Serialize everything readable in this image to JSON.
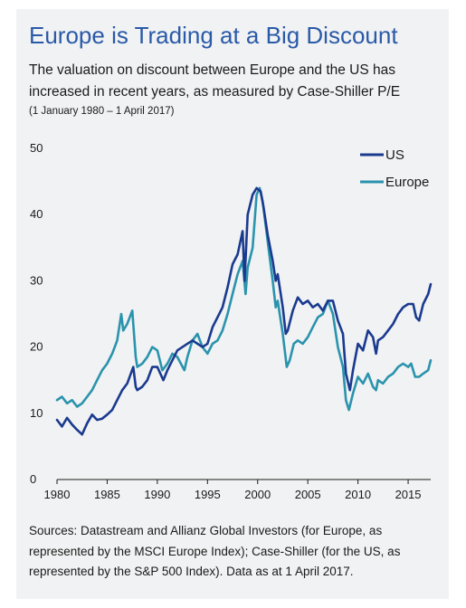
{
  "header": {
    "title": "Europe is Trading at a Big Discount",
    "subtitle": "The valuation on discount between Europe and the US has increased in recent years, as measured by Case-Shiller P/E",
    "date_range": "(1 January 1980 – 1 April 2017)"
  },
  "footer": {
    "sources": "Sources: Datastream and Allianz Global Investors (for Europe, as represented by the MSCI Europe Index); Case-Shiller (for the US, as represented by the S&P 500 Index). Data as at 1 April 2017."
  },
  "colors": {
    "us": "#1a3a8f",
    "europe": "#2a93ad",
    "title": "#2a5aa8",
    "card": "#f1f2f3"
  },
  "chart_data": {
    "type": "line",
    "xlim": [
      1980,
      2017.25
    ],
    "ylim": [
      0,
      50
    ],
    "xticks": [
      1980,
      1985,
      1990,
      1995,
      2000,
      2005,
      2010,
      2015
    ],
    "yticks": [
      0,
      10,
      20,
      30,
      40,
      50
    ],
    "legend_position": "top-right",
    "series": [
      {
        "name": "US",
        "color": "#1a3a8f",
        "points": [
          [
            1980.0,
            9.0
          ],
          [
            1980.5,
            8.0
          ],
          [
            1981.0,
            9.3
          ],
          [
            1981.5,
            8.3
          ],
          [
            1982.0,
            7.5
          ],
          [
            1982.5,
            6.8
          ],
          [
            1983.0,
            8.5
          ],
          [
            1983.5,
            9.8
          ],
          [
            1984.0,
            9.0
          ],
          [
            1984.5,
            9.2
          ],
          [
            1985.0,
            9.8
          ],
          [
            1985.5,
            10.5
          ],
          [
            1986.0,
            12.0
          ],
          [
            1986.5,
            13.5
          ],
          [
            1987.0,
            14.5
          ],
          [
            1987.6,
            17.0
          ],
          [
            1987.85,
            14.0
          ],
          [
            1988.0,
            13.5
          ],
          [
            1988.5,
            14.0
          ],
          [
            1989.0,
            15.0
          ],
          [
            1989.5,
            17.0
          ],
          [
            1990.0,
            17.0
          ],
          [
            1990.6,
            15.0
          ],
          [
            1991.0,
            16.5
          ],
          [
            1991.5,
            18.0
          ],
          [
            1992.0,
            19.5
          ],
          [
            1992.5,
            20.0
          ],
          [
            1993.0,
            20.5
          ],
          [
            1993.5,
            21.0
          ],
          [
            1994.0,
            20.5
          ],
          [
            1994.5,
            20.0
          ],
          [
            1995.0,
            20.5
          ],
          [
            1995.5,
            23.0
          ],
          [
            1996.0,
            24.5
          ],
          [
            1996.5,
            26.0
          ],
          [
            1997.0,
            29.0
          ],
          [
            1997.5,
            32.5
          ],
          [
            1998.0,
            34.0
          ],
          [
            1998.5,
            37.5
          ],
          [
            1998.7,
            30.0
          ],
          [
            1999.0,
            40.0
          ],
          [
            1999.5,
            43.0
          ],
          [
            1999.9,
            44.0
          ],
          [
            2000.3,
            43.5
          ],
          [
            2000.6,
            41.0
          ],
          [
            2001.0,
            37.0
          ],
          [
            2001.5,
            33.0
          ],
          [
            2001.8,
            30.0
          ],
          [
            2002.0,
            31.0
          ],
          [
            2002.5,
            26.0
          ],
          [
            2002.8,
            22.0
          ],
          [
            2003.0,
            22.5
          ],
          [
            2003.5,
            25.5
          ],
          [
            2004.0,
            27.5
          ],
          [
            2004.5,
            26.5
          ],
          [
            2005.0,
            27.0
          ],
          [
            2005.5,
            26.0
          ],
          [
            2006.0,
            26.5
          ],
          [
            2006.5,
            25.5
          ],
          [
            2007.0,
            27.0
          ],
          [
            2007.5,
            27.0
          ],
          [
            2008.0,
            24.0
          ],
          [
            2008.5,
            22.0
          ],
          [
            2008.8,
            16.0
          ],
          [
            2009.2,
            13.5
          ],
          [
            2009.5,
            16.5
          ],
          [
            2010.0,
            20.5
          ],
          [
            2010.5,
            19.5
          ],
          [
            2011.0,
            22.5
          ],
          [
            2011.5,
            21.5
          ],
          [
            2011.8,
            19.0
          ],
          [
            2012.0,
            21.0
          ],
          [
            2012.5,
            21.5
          ],
          [
            2013.0,
            22.5
          ],
          [
            2013.5,
            23.5
          ],
          [
            2014.0,
            25.0
          ],
          [
            2014.5,
            26.0
          ],
          [
            2015.0,
            26.5
          ],
          [
            2015.5,
            26.5
          ],
          [
            2015.8,
            24.5
          ],
          [
            2016.1,
            24.0
          ],
          [
            2016.5,
            26.5
          ],
          [
            2017.0,
            28.0
          ],
          [
            2017.25,
            29.5
          ]
        ]
      },
      {
        "name": "Europe",
        "color": "#2a93ad",
        "points": [
          [
            1980.0,
            12.0
          ],
          [
            1980.5,
            12.5
          ],
          [
            1981.0,
            11.5
          ],
          [
            1981.5,
            12.0
          ],
          [
            1982.0,
            11.0
          ],
          [
            1982.5,
            11.5
          ],
          [
            1983.0,
            12.5
          ],
          [
            1983.5,
            13.5
          ],
          [
            1984.0,
            15.0
          ],
          [
            1984.5,
            16.5
          ],
          [
            1985.0,
            17.5
          ],
          [
            1985.5,
            19.0
          ],
          [
            1986.0,
            21.0
          ],
          [
            1986.4,
            25.0
          ],
          [
            1986.6,
            22.5
          ],
          [
            1987.0,
            23.5
          ],
          [
            1987.5,
            25.5
          ],
          [
            1987.85,
            18.5
          ],
          [
            1988.0,
            17.0
          ],
          [
            1988.5,
            17.5
          ],
          [
            1989.0,
            18.5
          ],
          [
            1989.5,
            20.0
          ],
          [
            1990.0,
            19.5
          ],
          [
            1990.5,
            16.5
          ],
          [
            1991.0,
            17.5
          ],
          [
            1991.5,
            19.0
          ],
          [
            1992.0,
            18.5
          ],
          [
            1992.7,
            16.5
          ],
          [
            1993.0,
            18.5
          ],
          [
            1993.5,
            21.0
          ],
          [
            1994.0,
            22.0
          ],
          [
            1994.5,
            20.0
          ],
          [
            1995.0,
            19.0
          ],
          [
            1995.5,
            20.5
          ],
          [
            1996.0,
            21.0
          ],
          [
            1996.5,
            22.5
          ],
          [
            1997.0,
            25.0
          ],
          [
            1997.5,
            28.0
          ],
          [
            1998.0,
            31.0
          ],
          [
            1998.5,
            33.0
          ],
          [
            1998.8,
            28.0
          ],
          [
            1999.0,
            32.0
          ],
          [
            1999.5,
            35.0
          ],
          [
            1999.9,
            43.0
          ],
          [
            2000.2,
            44.0
          ],
          [
            2000.5,
            42.0
          ],
          [
            2001.0,
            36.0
          ],
          [
            2001.5,
            30.0
          ],
          [
            2001.8,
            26.0
          ],
          [
            2002.0,
            27.0
          ],
          [
            2002.5,
            22.0
          ],
          [
            2002.9,
            17.0
          ],
          [
            2003.2,
            18.0
          ],
          [
            2003.6,
            20.5
          ],
          [
            2004.0,
            21.0
          ],
          [
            2004.5,
            20.5
          ],
          [
            2005.0,
            21.5
          ],
          [
            2005.5,
            23.0
          ],
          [
            2006.0,
            24.5
          ],
          [
            2006.5,
            25.0
          ],
          [
            2007.0,
            27.0
          ],
          [
            2007.5,
            25.0
          ],
          [
            2008.0,
            20.0
          ],
          [
            2008.5,
            17.0
          ],
          [
            2008.8,
            12.0
          ],
          [
            2009.1,
            10.5
          ],
          [
            2009.5,
            13.0
          ],
          [
            2010.0,
            15.5
          ],
          [
            2010.5,
            14.5
          ],
          [
            2011.0,
            16.0
          ],
          [
            2011.5,
            14.0
          ],
          [
            2011.8,
            13.5
          ],
          [
            2012.0,
            15.0
          ],
          [
            2012.5,
            14.5
          ],
          [
            2013.0,
            15.5
          ],
          [
            2013.5,
            16.0
          ],
          [
            2014.0,
            17.0
          ],
          [
            2014.5,
            17.5
          ],
          [
            2015.0,
            17.0
          ],
          [
            2015.3,
            17.5
          ],
          [
            2015.7,
            15.5
          ],
          [
            2016.1,
            15.5
          ],
          [
            2016.5,
            16.0
          ],
          [
            2017.0,
            16.5
          ],
          [
            2017.25,
            18.0
          ]
        ]
      }
    ]
  }
}
